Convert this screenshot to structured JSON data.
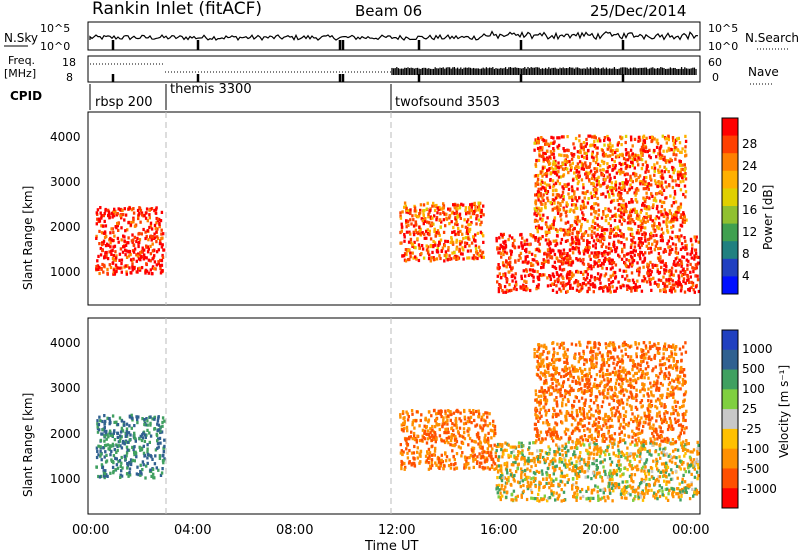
{
  "header": {
    "station": "Rankin Inlet (fitACF)",
    "beam": "Beam 06",
    "date": "25/Dec/2014"
  },
  "top_panel": {
    "left_label": "N.Sky",
    "right_label": "N.Search",
    "left_ticks": [
      "10^5",
      "10^0"
    ],
    "right_ticks": [
      "10^5",
      "10^0"
    ]
  },
  "freq_panel": {
    "left_label_line1": "Freq.",
    "left_label_line2": "[MHz]",
    "right_label": "Nave",
    "left_ticks": [
      "18",
      "8"
    ],
    "right_ticks": [
      "60",
      "0"
    ]
  },
  "cpid": {
    "label": "CPID",
    "modes": [
      {
        "name": "rbsp 200",
        "start_hour": 0
      },
      {
        "name": "themis 3300",
        "start_hour": 3
      },
      {
        "name": "twofsound 3503",
        "start_hour": 12
      }
    ]
  },
  "x_axis": {
    "label": "Time UT",
    "ticks": [
      "00:00",
      "04:00",
      "08:00",
      "12:00",
      "16:00",
      "20:00",
      "00:00"
    ]
  },
  "y_axis": {
    "label": "Slant Range [km]",
    "ticks": [
      "1000",
      "2000",
      "3000",
      "4000"
    ]
  },
  "power_colorbar": {
    "label": "Power [dB]",
    "ticks": [
      "28",
      "24",
      "20",
      "16",
      "12",
      "8",
      "4"
    ],
    "colors": [
      "#ff0000",
      "#ff4000",
      "#ff8000",
      "#ffb000",
      "#e0d000",
      "#90c030",
      "#40a050",
      "#208080",
      "#2040c0",
      "#0010ff"
    ]
  },
  "velocity_colorbar": {
    "label": "Velocity [m s⁻¹]",
    "ticks": [
      "1000",
      "500",
      "100",
      "25",
      "-25",
      "-100",
      "-500",
      "-1000"
    ],
    "colors": [
      "#2040c0",
      "#306090",
      "#40a060",
      "#80d040",
      "#c8c8c8",
      "#ffc000",
      "#ff9000",
      "#ff5000",
      "#ff0000"
    ]
  },
  "chart_data": {
    "type": "heatmap",
    "title": "Rankin Inlet (fitACF)",
    "subtitle": "Beam 06",
    "xlabel": "Time UT",
    "ylabel": "Slant Range [km]",
    "xlim_hours": [
      0,
      24
    ],
    "ylim_km": [
      180,
      4500
    ],
    "power_scatter_regions": [
      {
        "hours": [
          0.2,
          2.9
        ],
        "km": [
          900,
          2400
        ],
        "dominant_db": 28
      },
      {
        "hours": [
          12.2,
          15.5
        ],
        "km": [
          1200,
          2500
        ],
        "dominant_db": 24
      },
      {
        "hours": [
          16.0,
          24.0
        ],
        "km": [
          500,
          1800
        ],
        "dominant_db": 28
      },
      {
        "hours": [
          17.5,
          23.5
        ],
        "km": [
          1800,
          4000
        ],
        "dominant_db": 24
      }
    ],
    "velocity_scatter_regions": [
      {
        "hours": [
          0.2,
          2.9
        ],
        "km": [
          1000,
          2400
        ],
        "dominant_ms": 500
      },
      {
        "hours": [
          12.2,
          16.0
        ],
        "km": [
          1200,
          2500
        ],
        "dominant_ms": -500
      },
      {
        "hours": [
          16.0,
          24.0
        ],
        "km": [
          500,
          1800
        ],
        "dominant_ms": -100
      },
      {
        "hours": [
          17.5,
          23.5
        ],
        "km": [
          1800,
          4000
        ],
        "dominant_ms": -500
      }
    ],
    "grid": false
  }
}
